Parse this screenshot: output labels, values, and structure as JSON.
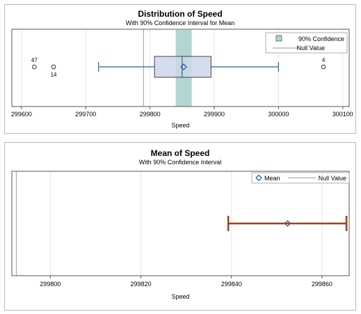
{
  "chart_data": [
    {
      "type": "box",
      "title": "Distribution of Speed",
      "subtitle": "With 90% Confidence Interval for Mean",
      "xlabel": "Speed",
      "xlim": [
        299585,
        300110
      ],
      "xticks": [
        299600,
        299700,
        299800,
        299900,
        300000,
        300100
      ],
      "grid": true,
      "legend_position": "top-right",
      "legend": [
        {
          "label": "90% Confidence",
          "symbol": "band"
        },
        {
          "label": "Null Value",
          "symbol": "line"
        }
      ],
      "box": {
        "whisker_low": 299720,
        "q1": 299807,
        "median": 299850,
        "q3": 299895,
        "whisker_high": 300000,
        "mean": 299852.4
      },
      "confidence_band": [
        299840,
        299865
      ],
      "null_value": 299790,
      "outliers": [
        {
          "value": 299620,
          "label": "47",
          "label_pos": "above"
        },
        {
          "value": 299650,
          "label": "14",
          "label_pos": "below"
        },
        {
          "value": 300070,
          "label": "4",
          "label_pos": "above"
        }
      ],
      "colors": {
        "box_fill": "#ccd7e8",
        "box_stroke": "#404040",
        "whisker": "#2b5ea0",
        "band": "#b3d6d2",
        "mean_marker": "#2b5ea0",
        "null_line": "#aaaaaa"
      }
    },
    {
      "type": "interval",
      "title": "Mean of Speed",
      "subtitle": "With 90% Confidence Interval",
      "xlabel": "Speed",
      "xlim": [
        299791.5,
        299866
      ],
      "xticks": [
        299800,
        299820,
        299840,
        299860
      ],
      "grid": true,
      "legend_position": "top-right",
      "legend": [
        {
          "label": "Mean",
          "symbol": "diamond"
        },
        {
          "label": "Null Value",
          "symbol": "line"
        }
      ],
      "mean": 299852.4,
      "ci": [
        299839.3,
        299865.4
      ],
      "null_value": 299792.5,
      "colors": {
        "interval": "#a0421a",
        "mean_marker": "#2b5ea0",
        "null_line": "#aaaaaa"
      }
    }
  ]
}
